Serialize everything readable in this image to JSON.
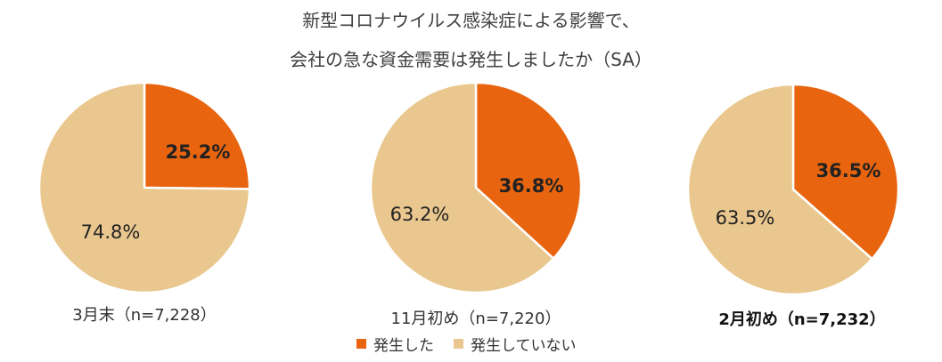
{
  "title_line1": "新型コロナウイルス感染症による影響で、",
  "title_line2": "会社の急な資金需要は発生しましたか（SA）",
  "colors": {
    "occurred": "#E8640E",
    "not_occurred": "#E9C78E"
  },
  "legend": [
    {
      "label": "発生した",
      "color": "#E8640E"
    },
    {
      "label": "発生していない",
      "color": "#E9C78E"
    }
  ],
  "chart_data": [
    {
      "type": "pie",
      "caption": "3月末（n=7,228）",
      "slices": [
        {
          "name": "発生した",
          "value": 25.2,
          "label": "25.2%"
        },
        {
          "name": "発生していない",
          "value": 74.8,
          "label": "74.8%"
        }
      ]
    },
    {
      "type": "pie",
      "caption": "11月初め（n=7,220）",
      "slices": [
        {
          "name": "発生した",
          "value": 36.8,
          "label": "36.8%"
        },
        {
          "name": "発生していない",
          "value": 63.2,
          "label": "63.2%"
        }
      ]
    },
    {
      "type": "pie",
      "caption": "2月初め（n=7,232）",
      "slices": [
        {
          "name": "発生した",
          "value": 36.5,
          "label": "36.5%"
        },
        {
          "name": "発生していない",
          "value": 63.5,
          "label": "63.5%"
        }
      ]
    }
  ]
}
